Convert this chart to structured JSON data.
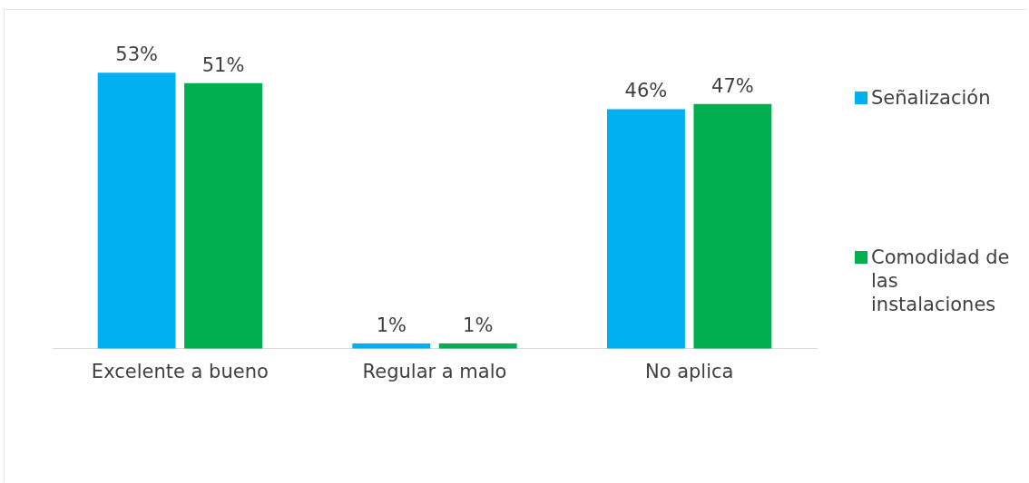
{
  "chart_data": {
    "type": "bar",
    "categories": [
      "Excelente a bueno",
      "Regular a malo",
      "No aplica"
    ],
    "series": [
      {
        "name": "Señalización",
        "color": "#00b0f0",
        "values": [
          53,
          1,
          46
        ],
        "value_labels": [
          "53%",
          "1%",
          "46%"
        ]
      },
      {
        "name": "Comodidad de las instalaciones",
        "color": "#00b050",
        "values": [
          51,
          1,
          47
        ],
        "value_labels": [
          "51%",
          "1%",
          "47%"
        ]
      }
    ],
    "legend": "right",
    "grid": false
  }
}
